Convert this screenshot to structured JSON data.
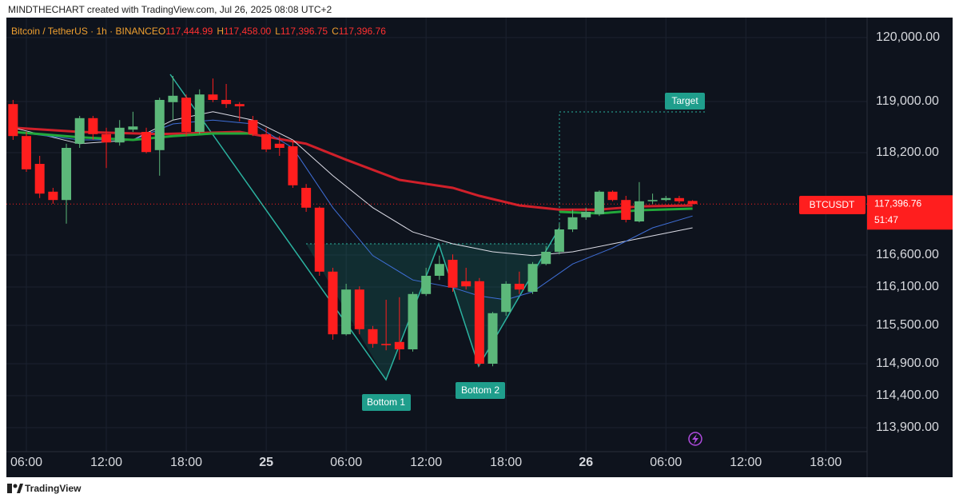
{
  "chart_data": {
    "type": "candlestick",
    "watermark": "MINDTHECHART created with TradingView.com, Jul 26, 2025 08:08 UTC+2",
    "symbol_line": "Bitcoin / TetherUS · 1h · BINANCE",
    "legend_keys": {
      "open": "O",
      "high": "H",
      "low": "L",
      "close": "C"
    },
    "legend_labels": {
      "open": "117,444.99",
      "high": "117,458.00",
      "low": "117,396.75",
      "close": "117,396.76"
    },
    "up_color": "#5cb87a",
    "down_color": "#ff1e1e",
    "x": [
      -19,
      -18,
      -17,
      -16,
      -15,
      -14,
      -13,
      -12,
      -11,
      -10,
      -9,
      -8,
      -7,
      -6,
      -5,
      -4,
      -3,
      -2,
      -1,
      0,
      1,
      2,
      3,
      4,
      5,
      6,
      7,
      8,
      9,
      10,
      11,
      12,
      13,
      14,
      15,
      16,
      17,
      18,
      19,
      20,
      21,
      22,
      23,
      24,
      25,
      26,
      27,
      28,
      29,
      30,
      31,
      32
    ],
    "open": [
      118960,
      118460,
      118025,
      117590,
      117460,
      118340,
      118740,
      118490,
      118360,
      118560,
      118525,
      118240,
      118990,
      119060,
      118525,
      119110,
      119025,
      118960,
      118710,
      118490,
      118340,
      118300,
      117650,
      117340,
      116340,
      115360,
      116060,
      115440,
      115210,
      115240,
      115125,
      115990,
      116275,
      116525,
      116190,
      116190,
      114900,
      115710,
      116150,
      116025,
      116460,
      116650,
      117000,
      117190,
      117240,
      117590,
      117460,
      117125,
      117440,
      117460,
      117490,
      117444.99
    ],
    "high": [
      119025,
      118525,
      118150,
      117650,
      118340,
      118775,
      118775,
      118590,
      118710,
      118840,
      118590,
      119060,
      119400,
      119110,
      119190,
      119360,
      119275,
      118990,
      118775,
      118590,
      118460,
      118400,
      117710,
      117360,
      116400,
      116150,
      116110,
      115490,
      115900,
      115940,
      116025,
      116400,
      116590,
      116610,
      116400,
      116240,
      115710,
      116190,
      116340,
      116490,
      116740,
      117090,
      117310,
      117340,
      117610,
      117610,
      117525,
      117740,
      117560,
      117525,
      117525,
      117458
    ],
    "low": [
      118400,
      117900,
      117490,
      117400,
      117090,
      118275,
      118400,
      117960,
      118310,
      118525,
      118190,
      117840,
      118710,
      118460,
      118490,
      118990,
      118900,
      118690,
      118460,
      118210,
      118150,
      117650,
      117275,
      116275,
      115275,
      115340,
      115360,
      115150,
      115110,
      114960,
      115090,
      115960,
      116210,
      116025,
      116060,
      114860,
      114860,
      115650,
      115990,
      115990,
      116440,
      116610,
      116960,
      117150,
      117210,
      117440,
      117110,
      117110,
      117400,
      117440,
      117410,
      117396.75
    ],
    "close": [
      118460,
      117940,
      117560,
      117460,
      118275,
      118740,
      118490,
      118360,
      118590,
      118610,
      118210,
      119025,
      119090,
      118525,
      119110,
      119025,
      118960,
      118925,
      118490,
      118250,
      118275,
      117690,
      117340,
      116340,
      115360,
      116060,
      115440,
      115210,
      115190,
      115125,
      115990,
      116275,
      116460,
      116090,
      116110,
      114900,
      115690,
      116150,
      116060,
      116460,
      116650,
      117000,
      117190,
      117275,
      117590,
      117460,
      117150,
      117440,
      117460,
      117490,
      117440,
      117396.76
    ],
    "overlays": [
      {
        "color": "#d0202a",
        "width": 3,
        "x": [
          -19,
          -14,
          -8,
          -2,
          3,
          6,
          10,
          14,
          16,
          19,
          22,
          25,
          28,
          32
        ],
        "values": [
          118590,
          118525,
          118490,
          118525,
          118340,
          118090,
          117775,
          117650,
          117525,
          117375,
          117310,
          117310,
          117360,
          117375
        ]
      },
      {
        "color": "#dcdce6",
        "width": 1,
        "x": [
          -19,
          -14,
          -10,
          -7,
          -4,
          -1,
          2,
          5,
          8,
          11,
          14,
          17,
          20,
          23,
          26,
          29,
          32
        ],
        "values": [
          118590,
          118340,
          118400,
          118710,
          118840,
          118710,
          118400,
          117840,
          117340,
          116960,
          116775,
          116650,
          116590,
          116650,
          116775,
          116900,
          117025
        ]
      },
      {
        "color": "#3f6fd8",
        "width": 1,
        "x": [
          -19,
          -14,
          -10,
          -7,
          -4,
          -1,
          2,
          5,
          8,
          11,
          14,
          16,
          18,
          20,
          23,
          26,
          29,
          32
        ],
        "values": [
          118525,
          118400,
          118400,
          118650,
          118710,
          118650,
          118275,
          117340,
          116590,
          116210,
          116090,
          115960,
          115900,
          116025,
          116460,
          116710,
          117025,
          117210
        ]
      },
      {
        "color": "#22a83a",
        "width": 3,
        "x": [
          -19,
          -14,
          -10,
          -7,
          -4,
          -1,
          10,
          22,
          25,
          28,
          32
        ],
        "values": [
          118525,
          118440,
          118400,
          118460,
          118500,
          118500,
          null,
          117275,
          117250,
          117300,
          117325
        ]
      }
    ],
    "xlim": [
      -19.5,
      45.1
    ],
    "xticks": [
      {
        "value": -18,
        "label": "06:00"
      },
      {
        "value": -12,
        "label": "12:00"
      },
      {
        "value": -6,
        "label": "18:00"
      },
      {
        "value": 0,
        "label": "25"
      },
      {
        "value": 6,
        "label": "06:00"
      },
      {
        "value": 12,
        "label": "12:00"
      },
      {
        "value": 18,
        "label": "18:00"
      },
      {
        "value": 24,
        "label": "26"
      },
      {
        "value": 30,
        "label": "06:00"
      },
      {
        "value": 36,
        "label": "12:00"
      },
      {
        "value": 42,
        "label": "18:00"
      }
    ],
    "ylim": [
      113525,
      120312.5
    ],
    "yticks": [
      {
        "value": 120000,
        "label": "120,000.00"
      },
      {
        "value": 119000,
        "label": "119,000.00"
      },
      {
        "value": 118200,
        "label": "118,200.00"
      },
      {
        "value": 116600,
        "label": "116,600.00"
      },
      {
        "value": 116100,
        "label": "116,100.00"
      },
      {
        "value": 115500,
        "label": "115,500.00"
      },
      {
        "value": 114900,
        "label": "114,900.00"
      },
      {
        "value": 114400,
        "label": "114,400.00"
      },
      {
        "value": 113900,
        "label": "113,900.00"
      }
    ],
    "grid": true,
    "last_price": {
      "value": 117396.76,
      "label": "117,396.76"
    },
    "symbol_tag": "BTCUSDT",
    "countdown": "51:47",
    "annotations": {
      "bottom1": "Bottom 1",
      "bottom2": "Bottom 2",
      "target": "Target"
    },
    "footer": "TradingView"
  }
}
